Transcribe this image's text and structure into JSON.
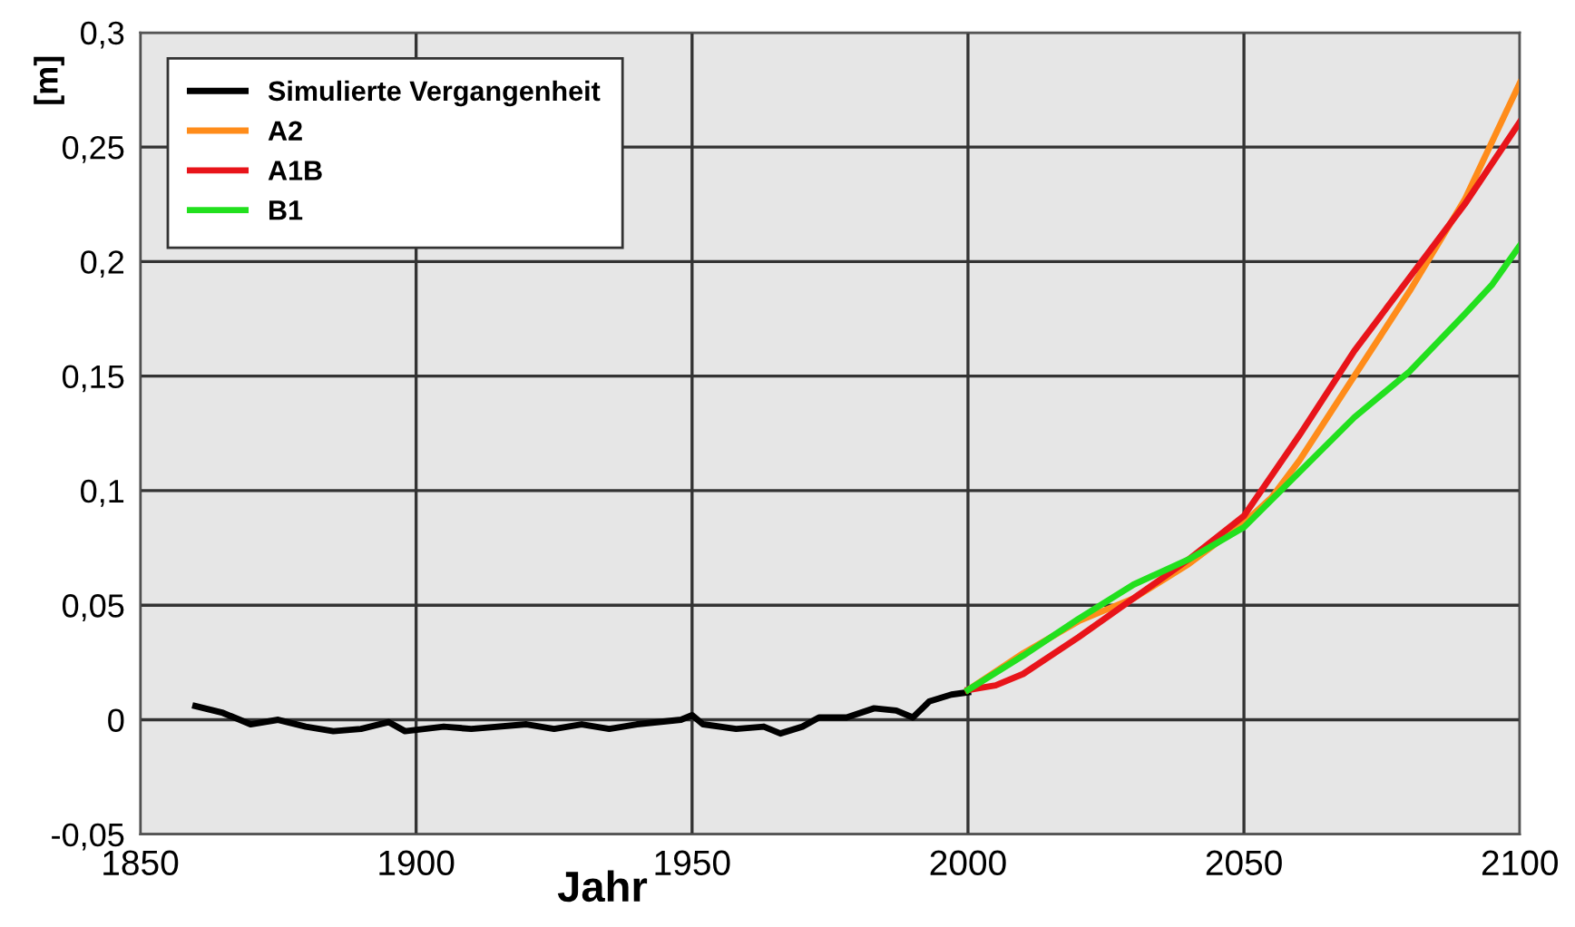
{
  "chart_data": {
    "type": "line",
    "xlabel": "Jahr",
    "ylabel": "[m]",
    "xlim": [
      1850,
      2100
    ],
    "xticks": [
      1850,
      1900,
      1950,
      2000,
      2050,
      2100
    ],
    "ylim": [
      -0.05,
      0.3
    ],
    "yticks": [
      {
        "value": -0.05,
        "label": "-0,05"
      },
      {
        "value": 0,
        "label": "0"
      },
      {
        "value": 0.05,
        "label": "0,05"
      },
      {
        "value": 0.1,
        "label": "0,1"
      },
      {
        "value": 0.15,
        "label": "0,15"
      },
      {
        "value": 0.2,
        "label": "0,2"
      },
      {
        "value": 0.25,
        "label": "0,25"
      },
      {
        "value": 0.3,
        "label": "0,3"
      }
    ],
    "grid": true,
    "legend": "top left",
    "line_style": "solid",
    "marker": "none",
    "series": [
      {
        "name": "Simulierte Vergangenheit",
        "color": "#000000",
        "x": [
          1860,
          1865,
          1870,
          1875,
          1880,
          1885,
          1890,
          1895,
          1898,
          1905,
          1910,
          1920,
          1925,
          1930,
          1935,
          1940,
          1948,
          1950,
          1952,
          1958,
          1963,
          1966,
          1970,
          1973,
          1978,
          1983,
          1987,
          1990,
          1993,
          1997,
          2000
        ],
        "values": [
          0.006,
          0.003,
          -0.002,
          0.0,
          -0.003,
          -0.005,
          -0.004,
          -0.001,
          -0.005,
          -0.003,
          -0.004,
          -0.002,
          -0.004,
          -0.002,
          -0.004,
          -0.002,
          0.0,
          0.002,
          -0.002,
          -0.004,
          -0.003,
          -0.006,
          -0.003,
          0.001,
          0.001,
          0.005,
          0.004,
          0.001,
          0.008,
          0.011,
          0.012
        ]
      },
      {
        "name": "A2",
        "color": "#ff8c1a",
        "x": [
          2000,
          2010,
          2020,
          2030,
          2040,
          2050,
          2055,
          2060,
          2070,
          2080,
          2090,
          2100
        ],
        "values": [
          0.013,
          0.029,
          0.043,
          0.053,
          0.068,
          0.086,
          0.097,
          0.113,
          0.15,
          0.187,
          0.227,
          0.278
        ]
      },
      {
        "name": "A1B",
        "color": "#e8141a",
        "x": [
          2000,
          2005,
          2010,
          2020,
          2030,
          2040,
          2050,
          2060,
          2070,
          2080,
          2090,
          2100
        ],
        "values": [
          0.013,
          0.015,
          0.02,
          0.036,
          0.053,
          0.07,
          0.089,
          0.124,
          0.161,
          0.193,
          0.225,
          0.261
        ]
      },
      {
        "name": "B1",
        "color": "#22e01e",
        "x": [
          2000,
          2010,
          2020,
          2030,
          2040,
          2050,
          2060,
          2070,
          2080,
          2090,
          2095,
          2100
        ],
        "values": [
          0.013,
          0.028,
          0.044,
          0.059,
          0.07,
          0.084,
          0.108,
          0.132,
          0.152,
          0.177,
          0.19,
          0.207
        ]
      }
    ]
  }
}
